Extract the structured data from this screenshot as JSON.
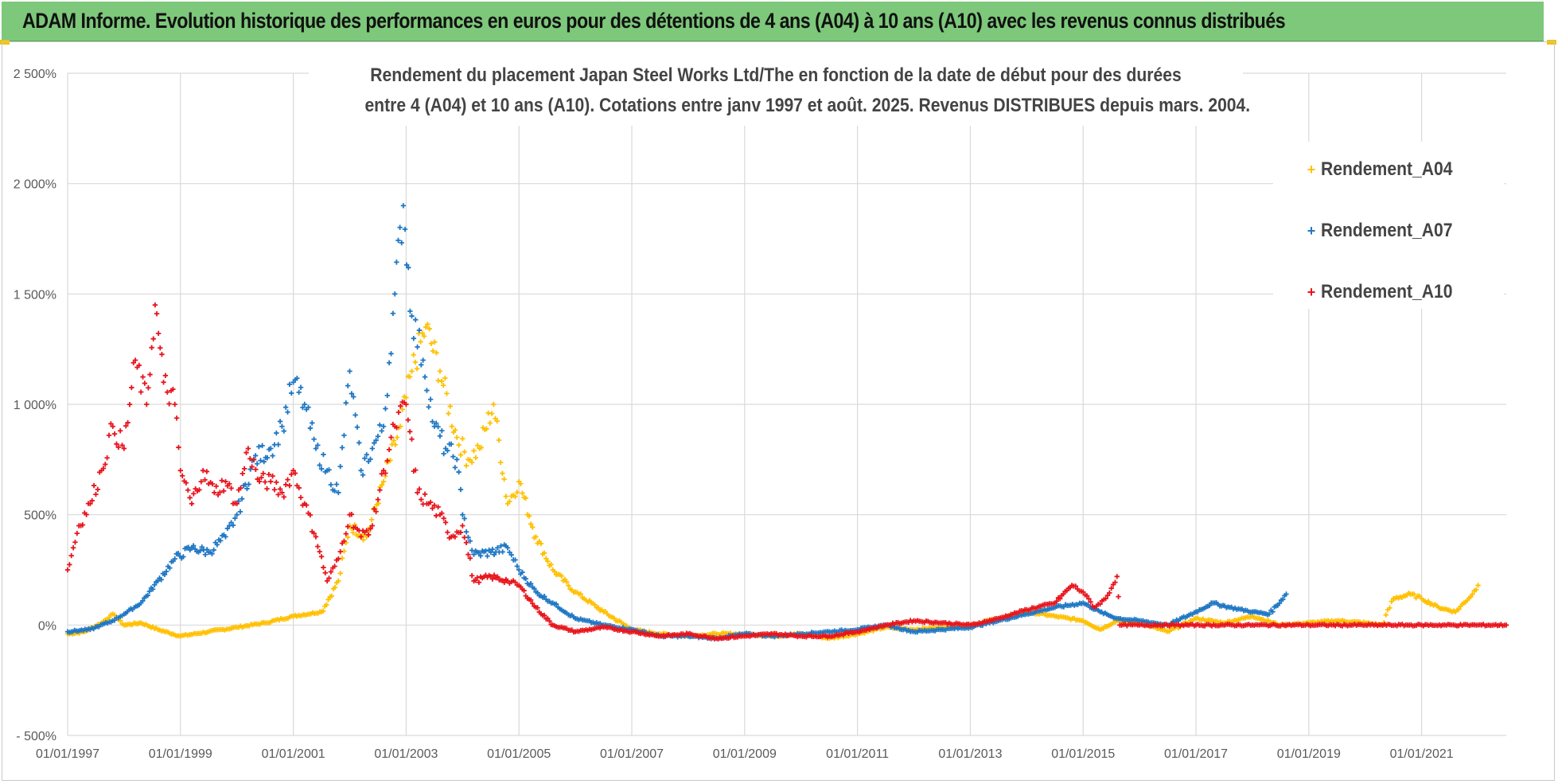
{
  "banner": {
    "title": "ADAM Informe. Evolution historique des performances en euros pour des détentions de 4 ans (A04) à 10 ans (A10) avec les revenus connus distribués"
  },
  "chart_data": {
    "type": "scatter",
    "title_line1": "Rendement du placement Japan Steel Works Ltd/The en fonction de la date de début pour des durées",
    "title_line2": "entre 4 (A04) et 10 ans (A10). Cotations entre janv 1997 et août. 2025. Revenus DISTRIBUES depuis mars. 2004.",
    "xlabel": "",
    "ylabel": "",
    "ylim": [
      -500,
      2500
    ],
    "xlim": [
      1997.0,
      2022.5
    ],
    "grid": true,
    "legend_position": "top-right",
    "y_ticks": [
      -500,
      0,
      500,
      1000,
      1500,
      2000,
      2500
    ],
    "y_tick_labels": [
      "- 500%",
      "0%",
      "500%",
      "1 000%",
      "1 500%",
      "2 000%",
      "2 500%"
    ],
    "x_ticks": [
      1997,
      1999,
      2001,
      2003,
      2005,
      2007,
      2009,
      2011,
      2013,
      2015,
      2017,
      2019,
      2021
    ],
    "x_tick_labels": [
      "01/01/1997",
      "01/01/1999",
      "01/01/2001",
      "01/01/2003",
      "01/01/2005",
      "01/01/2007",
      "01/01/2009",
      "01/01/2011",
      "01/01/2013",
      "01/01/2015",
      "01/01/2017",
      "01/01/2019",
      "01/01/2021"
    ],
    "series": [
      {
        "name": "Rendement_A04",
        "color": "#ffc000",
        "marker": "+",
        "points": [
          [
            1997.0,
            -40
          ],
          [
            1997.3,
            -30
          ],
          [
            1997.6,
            10
          ],
          [
            1997.8,
            50
          ],
          [
            1998.0,
            0
          ],
          [
            1998.3,
            10
          ],
          [
            1998.6,
            -20
          ],
          [
            1999.0,
            -50
          ],
          [
            1999.5,
            -30
          ],
          [
            2000.0,
            -10
          ],
          [
            2000.5,
            10
          ],
          [
            2001.0,
            40
          ],
          [
            2001.5,
            60
          ],
          [
            2001.8,
            200
          ],
          [
            2002.0,
            450
          ],
          [
            2002.3,
            400
          ],
          [
            2002.6,
            650
          ],
          [
            2002.9,
            900
          ],
          [
            2003.1,
            1150
          ],
          [
            2003.35,
            1350
          ],
          [
            2003.6,
            1150
          ],
          [
            2003.9,
            850
          ],
          [
            2004.1,
            750
          ],
          [
            2004.3,
            800
          ],
          [
            2004.55,
            1000
          ],
          [
            2004.8,
            550
          ],
          [
            2005.0,
            650
          ],
          [
            2005.3,
            400
          ],
          [
            2005.6,
            250
          ],
          [
            2006.0,
            150
          ],
          [
            2006.5,
            60
          ],
          [
            2007.0,
            -20
          ],
          [
            2007.5,
            -40
          ],
          [
            2008.0,
            -50
          ],
          [
            2008.5,
            -40
          ],
          [
            2009.0,
            -40
          ],
          [
            2009.5,
            -50
          ],
          [
            2010.0,
            -40
          ],
          [
            2010.5,
            -60
          ],
          [
            2011.0,
            -40
          ],
          [
            2011.5,
            -10
          ],
          [
            2012.0,
            -20
          ],
          [
            2012.5,
            -10
          ],
          [
            2013.0,
            0
          ],
          [
            2013.5,
            30
          ],
          [
            2014.0,
            60
          ],
          [
            2014.5,
            40
          ],
          [
            2015.0,
            20
          ],
          [
            2015.3,
            -20
          ],
          [
            2015.6,
            20
          ],
          [
            2016.0,
            10
          ],
          [
            2016.5,
            -30
          ],
          [
            2017.0,
            30
          ],
          [
            2017.5,
            10
          ],
          [
            2018.0,
            40
          ],
          [
            2018.5,
            0
          ],
          [
            2019.0,
            10
          ],
          [
            2019.5,
            20
          ],
          [
            2020.0,
            10
          ],
          [
            2020.3,
            0
          ],
          [
            2020.5,
            120
          ],
          [
            2020.8,
            140
          ],
          [
            2021.0,
            120
          ],
          [
            2021.3,
            80
          ],
          [
            2021.6,
            60
          ],
          [
            2021.9,
            140
          ],
          [
            2022.0,
            180
          ]
        ]
      },
      {
        "name": "Rendement_A07",
        "color": "#1f77c4",
        "marker": "+",
        "points": [
          [
            1997.0,
            -30
          ],
          [
            1997.4,
            -20
          ],
          [
            1997.8,
            20
          ],
          [
            1998.0,
            50
          ],
          [
            1998.3,
            100
          ],
          [
            1998.6,
            200
          ],
          [
            1998.9,
            300
          ],
          [
            1999.2,
            350
          ],
          [
            1999.5,
            330
          ],
          [
            1999.8,
            400
          ],
          [
            2000.0,
            500
          ],
          [
            2000.3,
            750
          ],
          [
            2000.6,
            800
          ],
          [
            2000.8,
            900
          ],
          [
            2001.0,
            1100
          ],
          [
            2001.2,
            1000
          ],
          [
            2001.4,
            800
          ],
          [
            2001.6,
            700
          ],
          [
            2001.8,
            600
          ],
          [
            2002.0,
            1150
          ],
          [
            2002.2,
            700
          ],
          [
            2002.4,
            800
          ],
          [
            2002.6,
            900
          ],
          [
            2002.8,
            1500
          ],
          [
            2002.95,
            1900
          ],
          [
            2003.1,
            1400
          ],
          [
            2003.3,
            1200
          ],
          [
            2003.5,
            900
          ],
          [
            2003.7,
            800
          ],
          [
            2003.9,
            750
          ],
          [
            2004.0,
            500
          ],
          [
            2004.2,
            320
          ],
          [
            2004.5,
            330
          ],
          [
            2004.8,
            350
          ],
          [
            2005.0,
            250
          ],
          [
            2005.3,
            150
          ],
          [
            2005.6,
            100
          ],
          [
            2006.0,
            30
          ],
          [
            2006.5,
            0
          ],
          [
            2007.0,
            -20
          ],
          [
            2007.5,
            -50
          ],
          [
            2008.0,
            -50
          ],
          [
            2008.5,
            -60
          ],
          [
            2009.0,
            -40
          ],
          [
            2009.5,
            -50
          ],
          [
            2010.0,
            -40
          ],
          [
            2010.5,
            -30
          ],
          [
            2011.0,
            -20
          ],
          [
            2011.5,
            0
          ],
          [
            2012.0,
            -30
          ],
          [
            2012.5,
            -20
          ],
          [
            2013.0,
            -10
          ],
          [
            2013.5,
            20
          ],
          [
            2014.0,
            50
          ],
          [
            2014.5,
            80
          ],
          [
            2015.0,
            100
          ],
          [
            2015.3,
            60
          ],
          [
            2015.6,
            30
          ],
          [
            2016.0,
            20
          ],
          [
            2016.5,
            0
          ],
          [
            2017.0,
            60
          ],
          [
            2017.3,
            100
          ],
          [
            2017.6,
            80
          ],
          [
            2018.0,
            60
          ],
          [
            2018.3,
            50
          ],
          [
            2018.6,
            140
          ]
        ]
      },
      {
        "name": "Rendement_A10",
        "color": "#e8141c",
        "marker": "+",
        "points": [
          [
            1997.0,
            250
          ],
          [
            1997.2,
            450
          ],
          [
            1997.4,
            550
          ],
          [
            1997.6,
            700
          ],
          [
            1997.8,
            900
          ],
          [
            1998.0,
            800
          ],
          [
            1998.2,
            1200
          ],
          [
            1998.4,
            1000
          ],
          [
            1998.55,
            1450
          ],
          [
            1998.7,
            1100
          ],
          [
            1998.9,
            1000
          ],
          [
            1999.0,
            700
          ],
          [
            1999.2,
            550
          ],
          [
            1999.4,
            700
          ],
          [
            1999.6,
            600
          ],
          [
            1999.8,
            650
          ],
          [
            2000.0,
            550
          ],
          [
            2000.2,
            800
          ],
          [
            2000.4,
            650
          ],
          [
            2000.6,
            650
          ],
          [
            2000.8,
            600
          ],
          [
            2001.0,
            700
          ],
          [
            2001.2,
            550
          ],
          [
            2001.4,
            400
          ],
          [
            2001.6,
            200
          ],
          [
            2001.8,
            300
          ],
          [
            2002.0,
            500
          ],
          [
            2002.2,
            400
          ],
          [
            2002.4,
            450
          ],
          [
            2002.6,
            700
          ],
          [
            2002.8,
            900
          ],
          [
            2003.0,
            1000
          ],
          [
            2003.2,
            600
          ],
          [
            2003.4,
            550
          ],
          [
            2003.6,
            500
          ],
          [
            2003.8,
            400
          ],
          [
            2004.0,
            450
          ],
          [
            2004.2,
            200
          ],
          [
            2004.5,
            220
          ],
          [
            2004.8,
            200
          ],
          [
            2005.0,
            180
          ],
          [
            2005.3,
            80
          ],
          [
            2005.6,
            0
          ],
          [
            2006.0,
            -30
          ],
          [
            2006.5,
            -10
          ],
          [
            2007.0,
            -30
          ],
          [
            2007.5,
            -50
          ],
          [
            2008.0,
            -40
          ],
          [
            2008.5,
            -60
          ],
          [
            2009.0,
            -50
          ],
          [
            2009.5,
            -40
          ],
          [
            2010.0,
            -50
          ],
          [
            2010.5,
            -50
          ],
          [
            2011.0,
            -30
          ],
          [
            2011.5,
            0
          ],
          [
            2012.0,
            20
          ],
          [
            2012.5,
            10
          ],
          [
            2013.0,
            0
          ],
          [
            2013.5,
            30
          ],
          [
            2014.0,
            70
          ],
          [
            2014.5,
            100
          ],
          [
            2014.8,
            180
          ],
          [
            2015.0,
            150
          ],
          [
            2015.2,
            80
          ],
          [
            2015.4,
            120
          ],
          [
            2015.6,
            220
          ],
          [
            2015.65,
            0
          ],
          [
            2016.0,
            0
          ],
          [
            2017.0,
            0
          ],
          [
            2018.0,
            0
          ],
          [
            2019.0,
            0
          ],
          [
            2020.0,
            0
          ],
          [
            2021.0,
            0
          ],
          [
            2022.0,
            0
          ],
          [
            2022.5,
            0
          ]
        ]
      }
    ]
  }
}
